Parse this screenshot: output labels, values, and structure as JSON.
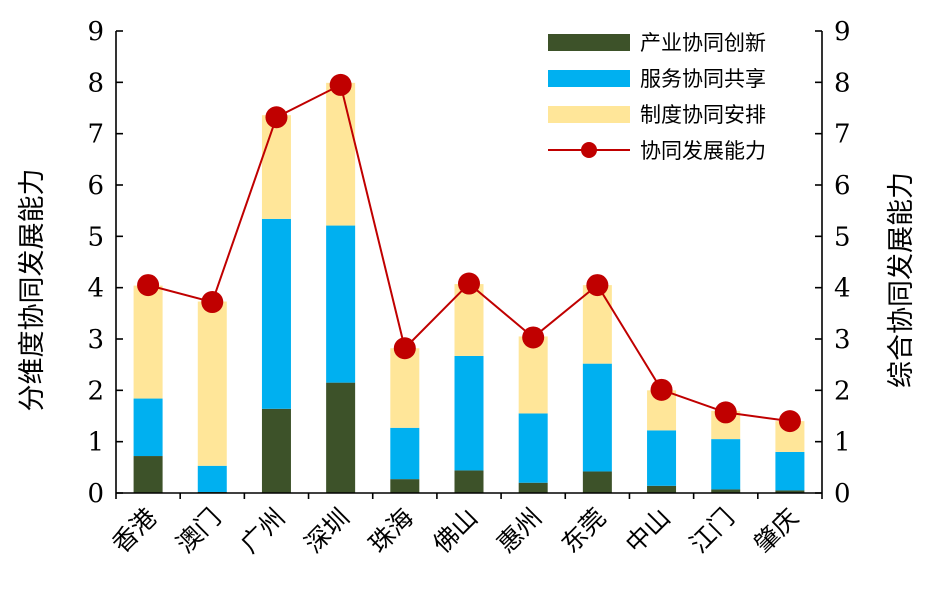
{
  "chart_data": {
    "type": "bar",
    "stacked": true,
    "categories": [
      "香港",
      "澳门",
      "广州",
      "深圳",
      "珠海",
      "佛山",
      "惠州",
      "东莞",
      "中山",
      "江门",
      "肇庆"
    ],
    "series": [
      {
        "name": "产业协同创新",
        "type": "bar",
        "axis": "left",
        "color": "#3d5229",
        "values": [
          0.72,
          0.02,
          1.64,
          2.15,
          0.27,
          0.44,
          0.2,
          0.42,
          0.14,
          0.07,
          0.05
        ]
      },
      {
        "name": "服务协同共享",
        "type": "bar",
        "axis": "left",
        "color": "#00b0f0",
        "values": [
          1.12,
          0.51,
          3.7,
          3.06,
          1.0,
          2.23,
          1.35,
          2.1,
          1.08,
          0.98,
          0.75
        ]
      },
      {
        "name": "制度协同安排",
        "type": "bar",
        "axis": "left",
        "color": "#ffe699",
        "values": [
          2.2,
          3.2,
          2.02,
          2.78,
          1.55,
          1.4,
          1.5,
          1.53,
          0.78,
          0.55,
          0.6
        ]
      },
      {
        "name": "协同发展能力",
        "type": "line",
        "axis": "right",
        "color": "#c00000",
        "values": [
          4.05,
          3.72,
          7.32,
          7.95,
          2.82,
          4.08,
          3.03,
          4.05,
          2.01,
          1.57,
          1.4
        ]
      }
    ],
    "ylabel": "分维度协同发展能力",
    "y2label": "综合协同发展能力",
    "ylim": [
      0,
      9
    ],
    "y2lim": [
      0,
      9
    ],
    "yticks": [
      0,
      1,
      2,
      3,
      4,
      5,
      6,
      7,
      8,
      9
    ],
    "grid": false,
    "legend_position": "top-right"
  }
}
